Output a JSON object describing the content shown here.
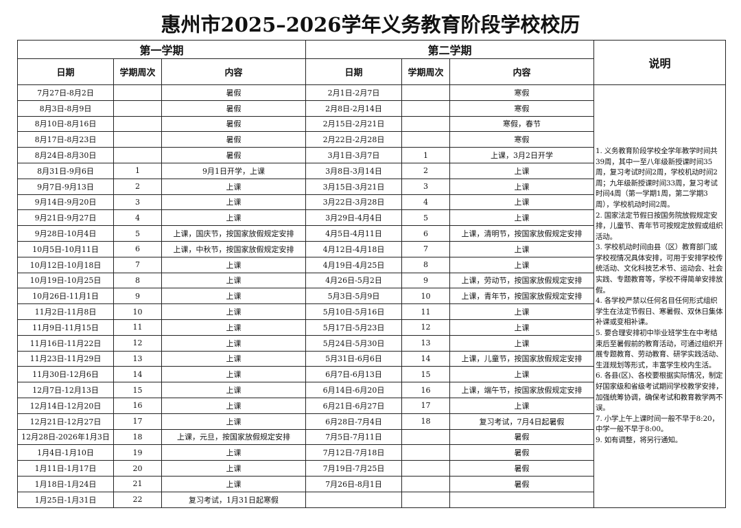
{
  "title": "惠州市2025–2026学年义务教育阶段学校校历",
  "headers": {
    "semester1": "第一学期",
    "semester2": "第二学期",
    "notes_title": "说明",
    "columns": [
      "日期",
      "学期周次",
      "内容",
      "日期",
      "学期周次",
      "内容"
    ]
  },
  "rows": [
    [
      "7月27日-8月2日",
      null,
      "暑假",
      "2月1日-2月7日",
      null,
      "寒假"
    ],
    [
      "8月3日-8月9日",
      null,
      "暑假",
      "2月8日-2月14日",
      null,
      "寒假"
    ],
    [
      "8月10日-8月16日",
      null,
      "暑假",
      "2月15日-2月21日",
      null,
      "寒假，春节"
    ],
    [
      "8月17日-8月23日",
      null,
      "暑假",
      "2月22日-2月28日",
      null,
      "寒假"
    ],
    [
      "8月24日-8月30日",
      null,
      "暑假",
      "3月1日-3月7日",
      1,
      "上课，3月2日开学"
    ],
    [
      "8月31日-9月6日",
      1,
      "9月1日开学，上课",
      "3月8日-3月14日",
      2,
      "上课"
    ],
    [
      "9月7日-9月13日",
      2,
      "上课",
      "3月15日-3月21日",
      3,
      "上课"
    ],
    [
      "9月14日-9月20日",
      3,
      "上课",
      "3月22日-3月28日",
      4,
      "上课"
    ],
    [
      "9月21日-9月27日",
      4,
      "上课",
      "3月29日-4月4日",
      5,
      "上课"
    ],
    [
      "9月28日-10月4日",
      5,
      "上课，国庆节，按国家放假规定安排",
      "4月5日-4月11日",
      6,
      "上课，清明节，按国家放假规定安排"
    ],
    [
      "10月5日-10月11日",
      6,
      "上课，中秋节，按国家放假规定安排",
      "4月12日-4月18日",
      7,
      "上课"
    ],
    [
      "10月12日-10月18日",
      7,
      "上课",
      "4月19日-4月25日",
      8,
      "上课"
    ],
    [
      "10月19日-10月25日",
      8,
      "上课",
      "4月26日-5月2日",
      9,
      "上课，劳动节，按国家放假规定安排"
    ],
    [
      "10月26日-11月1日",
      9,
      "上课",
      "5月3日-5月9日",
      10,
      "上课，青年节，按国家放假规定安排"
    ],
    [
      "11月2日-11月8日",
      10,
      "上课",
      "5月10日-5月16日",
      11,
      "上课"
    ],
    [
      "11月9日-11月15日",
      11,
      "上课",
      "5月17日-5月23日",
      12,
      "上课"
    ],
    [
      "11月16日-11月22日",
      12,
      "上课",
      "5月24日-5月30日",
      13,
      "上课"
    ],
    [
      "11月23日-11月29日",
      13,
      "上课",
      "5月31日-6月6日",
      14,
      "上课，儿童节，按国家放假规定安排"
    ],
    [
      "11月30日-12月6日",
      14,
      "上课",
      "6月7日-6月13日",
      15,
      "上课"
    ],
    [
      "12月7日-12月13日",
      15,
      "上课",
      "6月14日-6月20日",
      16,
      "上课，端午节，按国家放假规定安排"
    ],
    [
      "12月14日-12月20日",
      16,
      "上课",
      "6月21日-6月27日",
      17,
      "上课"
    ],
    [
      "12月21日-12月27日",
      17,
      "上课",
      "6月28日-7月4日",
      18,
      "复习考试，7月4日起暑假"
    ],
    [
      "12月28日-2026年1月3日",
      18,
      "上课，元旦，按国家放假规定安排",
      "7月5日-7月11日",
      null,
      "暑假"
    ],
    [
      "1月4日-1月10日",
      19,
      "上课",
      "7月12日-7月18日",
      null,
      "暑假"
    ],
    [
      "1月11日-1月17日",
      20,
      "上课",
      "7月19日-7月25日",
      null,
      "暑假"
    ],
    [
      "1月18日-1月24日",
      21,
      "上课",
      "7月26日-8月1日",
      null,
      "暑假"
    ],
    [
      "1月25日-1月31日",
      22,
      "复习考试，1月31日起寒假",
      null,
      null,
      null
    ]
  ],
  "notes": [
    "1. 义务教育阶段学校全学年教学时间共39周，其中一至八年级新授课时间35周，复习考试时间2周，学校机动时间2周；九年级新授课时间33周，复习考试时间4周（第一学期1周，第二学期3周），学校机动时间2周。",
    "2. 国家法定节假日按国务院放假规定安排，儿童节、青年节可按规定放假或组织活动。",
    "3. 学校机动时间由县（区）教育部门或学校视情况具体安排，可用于安排学校传统活动、文化科技艺术节、运动会、社会实践、专题教育等，学校不得简单安排放假。",
    "4. 各学校严禁以任何名目任何形式组织学生在法定节假日、寒暑假、双休日集体补课或变相补课。",
    "5. 要合理安排初中毕业班学生在中考结束后至暑假前的教育活动，可通过组织开展专题教育、劳动教育、研学实践活动、生涯规划等形式，丰富学生校内生活。",
    "6. 各县(区)、各校要根据实际情况，制定好国家级和省级考试期间学校教学安排，加强统筹协调，确保考试和教育教学两不误。",
    "7. 小学上午上课时间一般不早于8:20，中学一般不早于8:00。",
    "9. 如有调整，将另行通知。"
  ]
}
